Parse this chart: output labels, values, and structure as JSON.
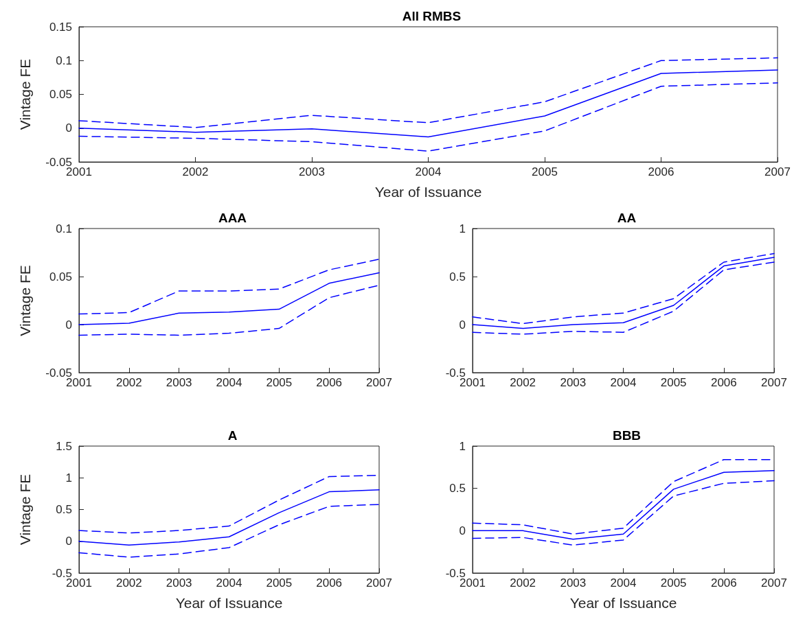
{
  "chart_data": [
    {
      "type": "line",
      "title": "All RMBS",
      "xlabel": "Year of Issuance",
      "ylabel": "Vintage FE",
      "x": [
        2001,
        2002,
        2003,
        2004,
        2005,
        2006,
        2007
      ],
      "xlim": [
        2001,
        2007
      ],
      "xticks": [
        2001,
        2002,
        2003,
        2004,
        2005,
        2006,
        2007
      ],
      "ylim": [
        -0.05,
        0.15
      ],
      "yticks": [
        -0.05,
        0,
        0.05,
        0.1,
        0.15
      ],
      "grid": false,
      "marker": "none",
      "series": [
        {
          "color": "#0000ff",
          "line_style": "solid",
          "values": [
            0,
            -0.006,
            -0.001,
            -0.013,
            0.018,
            0.081,
            0.086
          ]
        },
        {
          "color": "#0000ff",
          "line_style": "dashed",
          "values": [
            0.011,
            0.001,
            0.019,
            0.008,
            0.039,
            0.1,
            0.104
          ]
        },
        {
          "color": "#0000ff",
          "line_style": "dashed",
          "values": [
            -0.012,
            -0.015,
            -0.02,
            -0.034,
            -0.004,
            0.062,
            0.067
          ]
        }
      ]
    },
    {
      "type": "line",
      "title": "AAA",
      "ylabel": "Vintage FE",
      "x": [
        2001,
        2002,
        2003,
        2004,
        2005,
        2006,
        2007
      ],
      "xlim": [
        2001,
        2007
      ],
      "xticks": [
        2001,
        2002,
        2003,
        2004,
        2005,
        2006,
        2007
      ],
      "ylim": [
        -0.05,
        0.1
      ],
      "yticks": [
        -0.05,
        0,
        0.05,
        0.1
      ],
      "grid": false,
      "marker": "none",
      "series": [
        {
          "color": "#0000ff",
          "line_style": "solid",
          "values": [
            0,
            0.0014,
            0.012,
            0.013,
            0.016,
            0.043,
            0.054
          ]
        },
        {
          "color": "#0000ff",
          "line_style": "dashed",
          "values": [
            0.011,
            0.0125,
            0.035,
            0.035,
            0.037,
            0.057,
            0.068
          ]
        },
        {
          "color": "#0000ff",
          "line_style": "dashed",
          "values": [
            -0.011,
            -0.01,
            -0.011,
            -0.009,
            -0.004,
            0.028,
            0.041
          ]
        }
      ]
    },
    {
      "type": "line",
      "title": "AA",
      "x": [
        2001,
        2002,
        2003,
        2004,
        2005,
        2006,
        2007
      ],
      "xlim": [
        2001,
        2007
      ],
      "xticks": [
        2001,
        2002,
        2003,
        2004,
        2005,
        2006,
        2007
      ],
      "ylim": [
        -0.5,
        1
      ],
      "yticks": [
        -0.5,
        0,
        0.5,
        1
      ],
      "grid": false,
      "marker": "none",
      "series": [
        {
          "color": "#0000ff",
          "line_style": "solid",
          "values": [
            0,
            -0.04,
            0,
            0.02,
            0.2,
            0.61,
            0.7
          ]
        },
        {
          "color": "#0000ff",
          "line_style": "dashed",
          "values": [
            0.08,
            0.01,
            0.08,
            0.12,
            0.27,
            0.65,
            0.74
          ]
        },
        {
          "color": "#0000ff",
          "line_style": "dashed",
          "values": [
            -0.08,
            -0.1,
            -0.07,
            -0.08,
            0.14,
            0.57,
            0.65
          ]
        }
      ]
    },
    {
      "type": "line",
      "title": "A",
      "xlabel": "Year of Issuance",
      "ylabel": "Vintage FE",
      "x": [
        2001,
        2002,
        2003,
        2004,
        2005,
        2006,
        2007
      ],
      "xlim": [
        2001,
        2007
      ],
      "xticks": [
        2001,
        2002,
        2003,
        2004,
        2005,
        2006,
        2007
      ],
      "ylim": [
        -0.5,
        1.5
      ],
      "yticks": [
        -0.5,
        0,
        0.5,
        1,
        1.5
      ],
      "grid": false,
      "marker": "none",
      "series": [
        {
          "color": "#0000ff",
          "line_style": "solid",
          "values": [
            0,
            -0.06,
            -0.01,
            0.07,
            0.45,
            0.78,
            0.81
          ]
        },
        {
          "color": "#0000ff",
          "line_style": "dashed",
          "values": [
            0.17,
            0.13,
            0.17,
            0.24,
            0.65,
            1.02,
            1.04
          ]
        },
        {
          "color": "#0000ff",
          "line_style": "dashed",
          "values": [
            -0.18,
            -0.25,
            -0.2,
            -0.1,
            0.26,
            0.55,
            0.58
          ]
        }
      ]
    },
    {
      "type": "line",
      "title": "BBB",
      "xlabel": "Year of Issuance",
      "x": [
        2001,
        2002,
        2003,
        2004,
        2005,
        2006,
        2007
      ],
      "xlim": [
        2001,
        2007
      ],
      "xticks": [
        2001,
        2002,
        2003,
        2004,
        2005,
        2006,
        2007
      ],
      "ylim": [
        -0.5,
        1
      ],
      "yticks": [
        -0.5,
        0,
        0.5,
        1
      ],
      "grid": false,
      "marker": "none",
      "series": [
        {
          "color": "#0000ff",
          "line_style": "solid",
          "values": [
            0,
            0,
            -0.1,
            -0.04,
            0.49,
            0.69,
            0.71
          ]
        },
        {
          "color": "#0000ff",
          "line_style": "dashed",
          "values": [
            0.09,
            0.07,
            -0.04,
            0.03,
            0.58,
            0.84,
            0.84
          ]
        },
        {
          "color": "#0000ff",
          "line_style": "dashed",
          "values": [
            -0.09,
            -0.08,
            -0.17,
            -0.11,
            0.41,
            0.56,
            0.59
          ]
        }
      ]
    }
  ]
}
